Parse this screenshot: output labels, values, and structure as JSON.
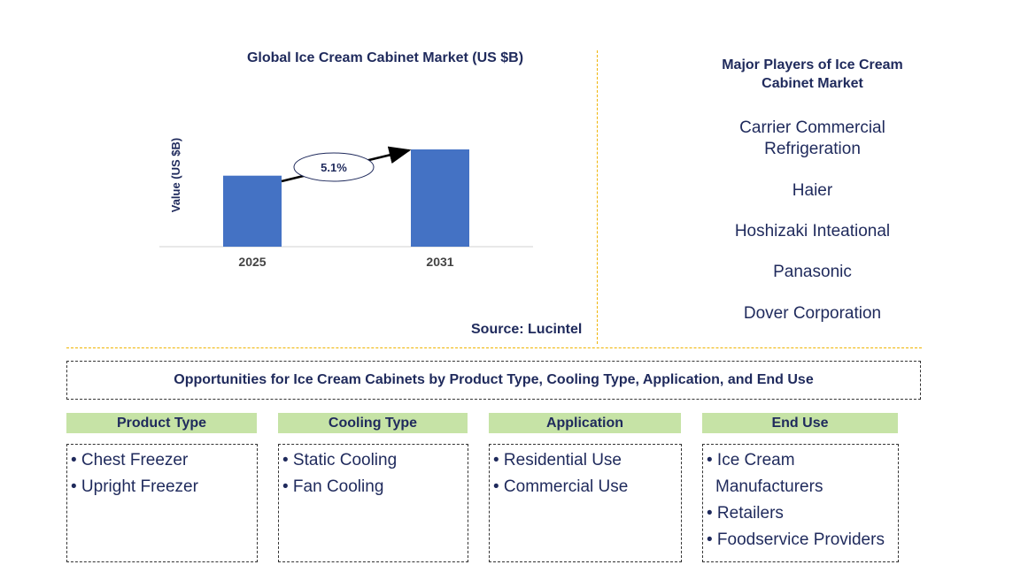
{
  "chart_data": {
    "type": "bar",
    "title": "Global Ice Cream Cabinet Market (US $B)",
    "ylabel": "Value (US $B)",
    "xlabel": "",
    "categories": [
      "2025",
      "2031"
    ],
    "values": [
      0.73,
      1.0
    ],
    "annotation": "5.1%",
    "bar_color": "#4472c4"
  },
  "source": "Source: Lucintel",
  "players": {
    "title_line1": "Major Players of Ice Cream",
    "title_line2": "Cabinet Market",
    "items": [
      {
        "line1": "Carrier Commercial",
        "line2": "Refrigeration"
      },
      {
        "line1": "Haier"
      },
      {
        "line1": "Hoshizaki Inteational"
      },
      {
        "line1": "Panasonic"
      },
      {
        "line1": "Dover Corporation"
      }
    ]
  },
  "opportunities": {
    "title": "Opportunities for Ice Cream Cabinets by Product Type, Cooling Type, Application, and End Use",
    "header_color": "#c6e3a6",
    "columns": [
      {
        "header": "Product Type",
        "items": [
          "• Chest Freezer",
          "• Upright Freezer"
        ]
      },
      {
        "header": "Cooling Type",
        "items": [
          "• Static Cooling",
          "• Fan Cooling"
        ]
      },
      {
        "header": "Application",
        "items": [
          "• Residential Use",
          "• Commercial Use"
        ]
      },
      {
        "header": "End Use",
        "items": [
          "• Ice Cream",
          "Manufacturers",
          "• Retailers",
          "• Foodservice Providers"
        ]
      }
    ]
  }
}
